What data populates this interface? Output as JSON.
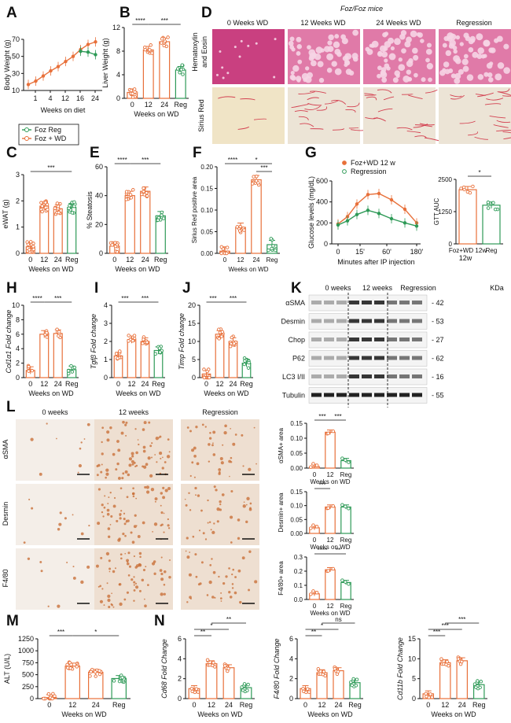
{
  "figure": {
    "colors": {
      "orange": "#e8703a",
      "green": "#2e9a57",
      "gray": "#666666",
      "he_pink": "#d6508a",
      "sirius_bg": "#efe6d6",
      "ihc_bg": "#f1e9e2",
      "ihc_stain": "#c9824a"
    },
    "panel_letters": [
      "A",
      "B",
      "C",
      "D",
      "E",
      "F",
      "G",
      "H",
      "I",
      "J",
      "K",
      "L",
      "M",
      "N"
    ],
    "sig_strings": [
      "****",
      "***",
      "**",
      "*",
      "ns"
    ]
  },
  "panel_d": {
    "mouse_title": "Foz/Foz mice",
    "col_labels": [
      "0 Weeks WD",
      "12 Weeks WD",
      "24 Weeks WD",
      "Regression"
    ],
    "row_labels": [
      "Hematoxylin and Eosin",
      "Sirius Red"
    ]
  },
  "panel_k": {
    "col_labels": [
      "0 weeks",
      "12 weeks",
      "Regression"
    ],
    "kda_label": "KDa",
    "rows": [
      {
        "protein": "αSMA",
        "kda": "42"
      },
      {
        "protein": "Desmin",
        "kda": "53"
      },
      {
        "protein": "Chop",
        "kda": "27"
      },
      {
        "protein": "P62",
        "kda": "62"
      },
      {
        "protein": "LC3 I/II",
        "kda": "16"
      },
      {
        "protein": "Tubulin",
        "kda": "55"
      }
    ]
  },
  "panel_l": {
    "col_labels": [
      "0 weeks",
      "12 weeks",
      "Regression"
    ],
    "row_labels": [
      "αSMA",
      "Desmin",
      "F4/80"
    ]
  },
  "chart_data": [
    {
      "id": "A",
      "type": "line",
      "ylabel": "Body Weight (g)",
      "xlabel": "Weeks on diet",
      "x_ticks": [
        "1",
        "4",
        "12",
        "16",
        "24"
      ],
      "y_ticks": [
        "10",
        "30",
        "50",
        "70"
      ],
      "ylim": [
        10,
        70
      ],
      "legend": [
        "Foz Reg",
        "Foz + WD"
      ],
      "series": [
        {
          "name": "Foz + WD",
          "color": "orange",
          "x": [
            0,
            1,
            2,
            3,
            4,
            5,
            6,
            7,
            8,
            9
          ],
          "y": [
            17,
            21,
            27,
            33,
            38,
            44,
            50,
            58,
            64,
            67
          ]
        },
        {
          "name": "Foz Reg",
          "color": "green",
          "x": [
            7,
            8,
            9
          ],
          "y": [
            56,
            55,
            52
          ]
        }
      ]
    },
    {
      "id": "B",
      "type": "bar",
      "ylabel": "Liver Weight (g)",
      "xlabel": "Weeks on WD",
      "categories": [
        "0",
        "12",
        "24",
        "Reg"
      ],
      "values": [
        1.0,
        8.2,
        9.6,
        4.8
      ],
      "y_ticks": [
        "0",
        "4",
        "8",
        "12"
      ],
      "ylim": [
        0,
        12
      ],
      "sig": [
        {
          "from": 0,
          "to": 1,
          "text": "****"
        },
        {
          "from": 1,
          "to": 3,
          "text": "***"
        }
      ]
    },
    {
      "id": "C",
      "type": "bar",
      "ylabel": "eWAT (g)",
      "xlabel": "Weeks on WD",
      "categories": [
        "0",
        "12",
        "24",
        "Reg"
      ],
      "values": [
        0.25,
        1.8,
        1.7,
        1.75
      ],
      "y_ticks": [
        "0",
        "1",
        "2",
        "3"
      ],
      "ylim": [
        0,
        3
      ],
      "sig": [
        {
          "from": 0,
          "to": 3,
          "text": "***"
        }
      ]
    },
    {
      "id": "E",
      "type": "bar",
      "ylabel": "% Steatosis",
      "xlabel": "Weeks on WD",
      "categories": [
        "0",
        "12",
        "24",
        "Reg"
      ],
      "values": [
        5,
        40,
        43,
        26
      ],
      "y_ticks": [
        "0",
        "20",
        "40",
        "60"
      ],
      "ylim": [
        0,
        60
      ],
      "sig": [
        {
          "from": 0,
          "to": 1,
          "text": "****"
        },
        {
          "from": 1,
          "to": 3,
          "text": "***"
        }
      ]
    },
    {
      "id": "F",
      "type": "bar",
      "ylabel": "Sirius Red positive area",
      "xlabel": "Weeks on WD",
      "categories": [
        "0",
        "12",
        "24",
        "Reg"
      ],
      "values": [
        0.005,
        0.06,
        0.17,
        0.02
      ],
      "y_ticks": [
        "0.00",
        "0.05",
        "0.10",
        "0.15",
        "0.20"
      ],
      "ylim": [
        0,
        0.2
      ],
      "sig": [
        {
          "from": 0,
          "to": 1,
          "text": "****"
        },
        {
          "from": 1,
          "to": 3,
          "text": "*"
        },
        {
          "from": 2,
          "to": 3,
          "text": "***"
        }
      ]
    },
    {
      "id": "G1",
      "type": "line",
      "ylabel": "Glucose levels (mg/dL)",
      "xlabel": "Minutes after IP injection",
      "x_ticks": [
        "0",
        "15'",
        "60'",
        "180'"
      ],
      "y_ticks": [
        "0",
        "200",
        "400",
        "600"
      ],
      "ylim": [
        0,
        600
      ],
      "legend": [
        "Foz+WD 12 w",
        "Regression"
      ],
      "series": [
        {
          "name": "Foz+WD 12 w",
          "color": "orange",
          "x": [
            0,
            15,
            30,
            45,
            60,
            90,
            120,
            180
          ],
          "y": [
            190,
            260,
            380,
            470,
            480,
            420,
            330,
            200
          ]
        },
        {
          "name": "Regression",
          "color": "green",
          "x": [
            0,
            15,
            30,
            45,
            60,
            90,
            120,
            180
          ],
          "y": [
            180,
            220,
            280,
            320,
            290,
            240,
            200,
            170
          ]
        }
      ]
    },
    {
      "id": "G2",
      "type": "bar",
      "ylabel": "GTT AUC",
      "categories": [
        "Foz+WD 12w",
        "Reg"
      ],
      "values": [
        2100,
        1500
      ],
      "y_ticks": [
        "0",
        "1250",
        "2500"
      ],
      "ylim": [
        0,
        2500
      ],
      "sig": [
        {
          "from": 0,
          "to": 1,
          "text": "*"
        }
      ]
    },
    {
      "id": "H",
      "type": "bar",
      "ylabel": "Col1α1 Fold change",
      "xlabel": "Weeks on WD",
      "categories": [
        "0",
        "12",
        "24",
        "Reg"
      ],
      "values": [
        1.0,
        6.0,
        6.1,
        1.1
      ],
      "y_ticks": [
        "0",
        "2",
        "4",
        "6",
        "8",
        "10"
      ],
      "ylim": [
        0,
        10
      ],
      "sig": [
        {
          "from": 0,
          "to": 1,
          "text": "****"
        },
        {
          "from": 1,
          "to": 3,
          "text": "***"
        }
      ]
    },
    {
      "id": "I",
      "type": "bar",
      "ylabel": "Tgfβ Fold change",
      "xlabel": "Weeks on WD",
      "categories": [
        "0",
        "12",
        "24",
        "Reg"
      ],
      "values": [
        1.2,
        2.1,
        2.0,
        1.5
      ],
      "y_ticks": [
        "0",
        "1",
        "2",
        "3",
        "4"
      ],
      "ylim": [
        0,
        4
      ],
      "sig": [
        {
          "from": 0,
          "to": 1,
          "text": "***"
        },
        {
          "from": 1,
          "to": 3,
          "text": "***"
        }
      ]
    },
    {
      "id": "J",
      "type": "bar",
      "ylabel": "Timp Fold change",
      "xlabel": "Weeks on WD",
      "categories": [
        "0",
        "12",
        "24",
        "Reg"
      ],
      "values": [
        1.0,
        12.0,
        10.0,
        4.0
      ],
      "y_ticks": [
        "0",
        "5",
        "10",
        "15",
        "20"
      ],
      "ylim": [
        0,
        20
      ],
      "sig": [
        {
          "from": 0,
          "to": 1,
          "text": "***"
        },
        {
          "from": 1,
          "to": 3,
          "text": "***"
        }
      ]
    },
    {
      "id": "L1",
      "type": "bar",
      "ylabel": "αSMA+ area",
      "xlabel": "Weeks on WD",
      "categories": [
        "0",
        "12",
        "Reg"
      ],
      "values": [
        0.005,
        0.12,
        0.025
      ],
      "y_ticks": [
        "0.00",
        "0.05",
        "0.10",
        "0.15"
      ],
      "ylim": [
        0,
        0.15
      ],
      "sig": [
        {
          "from": 0,
          "to": 1,
          "text": "***"
        },
        {
          "from": 1,
          "to": 2,
          "text": "***"
        }
      ]
    },
    {
      "id": "L2",
      "type": "bar",
      "ylabel": "Desmin+ area",
      "xlabel": "Weeks on WD",
      "categories": [
        "0",
        "12",
        "Reg"
      ],
      "values": [
        0.02,
        0.095,
        0.095
      ],
      "y_ticks": [
        "0.00",
        "0.05",
        "0.10",
        "0.15"
      ],
      "ylim": [
        0,
        0.15
      ],
      "sig": [
        {
          "from": 0,
          "to": 1,
          "text": "***"
        }
      ]
    },
    {
      "id": "L3",
      "type": "bar",
      "ylabel": "F4/80+ area",
      "xlabel": "Weeks on WD",
      "categories": [
        "0",
        "12",
        "Reg"
      ],
      "values": [
        0.04,
        0.21,
        0.12
      ],
      "y_ticks": [
        "0.0",
        "0.1",
        "0.2",
        "0.3"
      ],
      "ylim": [
        0,
        0.3
      ],
      "sig": [
        {
          "from": 0,
          "to": 1,
          "text": "****"
        },
        {
          "from": 1,
          "to": 2,
          "text": "**"
        }
      ]
    },
    {
      "id": "M",
      "type": "bar",
      "ylabel": "ALT (U/L)",
      "xlabel": "Weeks on WD",
      "categories": [
        "0",
        "12",
        "24",
        "Reg"
      ],
      "values": [
        20,
        680,
        550,
        420
      ],
      "y_ticks": [
        "0",
        "250",
        "500",
        "750",
        "1000",
        "1250"
      ],
      "ylim": [
        0,
        1250
      ],
      "sig": [
        {
          "from": 0,
          "to": 1,
          "text": "***"
        },
        {
          "from": 1,
          "to": 3,
          "text": "*"
        }
      ]
    },
    {
      "id": "N1",
      "type": "bar",
      "ylabel": "Cd68 Fold Change",
      "xlabel": "Weeks on WD",
      "categories": [
        "0",
        "12",
        "24",
        "Reg"
      ],
      "values": [
        1.0,
        3.5,
        3.1,
        1.1
      ],
      "y_ticks": [
        "0",
        "2",
        "4",
        "6"
      ],
      "ylim": [
        0,
        6
      ],
      "sig": [
        {
          "from": 0,
          "to": 1,
          "text": "**"
        },
        {
          "from": 0,
          "to": 2,
          "text": "*"
        },
        {
          "from": 1,
          "to": 3,
          "text": "**"
        }
      ]
    },
    {
      "id": "N2",
      "type": "bar",
      "ylabel": "F4/80 Fold Change",
      "xlabel": "Weeks on WD",
      "categories": [
        "0",
        "12",
        "24",
        "Reg"
      ],
      "values": [
        1.0,
        2.6,
        2.8,
        1.6
      ],
      "y_ticks": [
        "0",
        "2",
        "4",
        "6"
      ],
      "ylim": [
        0,
        6
      ],
      "sig": [
        {
          "from": 0,
          "to": 1,
          "text": "**"
        },
        {
          "from": 0,
          "to": 2,
          "text": "*"
        },
        {
          "from": 1,
          "to": 3,
          "text": "ns"
        }
      ]
    },
    {
      "id": "N3",
      "type": "bar",
      "ylabel": "Cd11b Fold Change",
      "xlabel": "Weeks on WD",
      "categories": [
        "0",
        "12",
        "24",
        "Reg"
      ],
      "values": [
        1.2,
        9.0,
        9.5,
        3.5
      ],
      "y_ticks": [
        "0",
        "5",
        "10",
        "15"
      ],
      "ylim": [
        0,
        15
      ],
      "sig": [
        {
          "from": 0,
          "to": 1,
          "text": "***"
        },
        {
          "from": 0,
          "to": 2,
          "text": "***"
        },
        {
          "from": 1,
          "to": 3,
          "text": "***"
        }
      ]
    }
  ]
}
